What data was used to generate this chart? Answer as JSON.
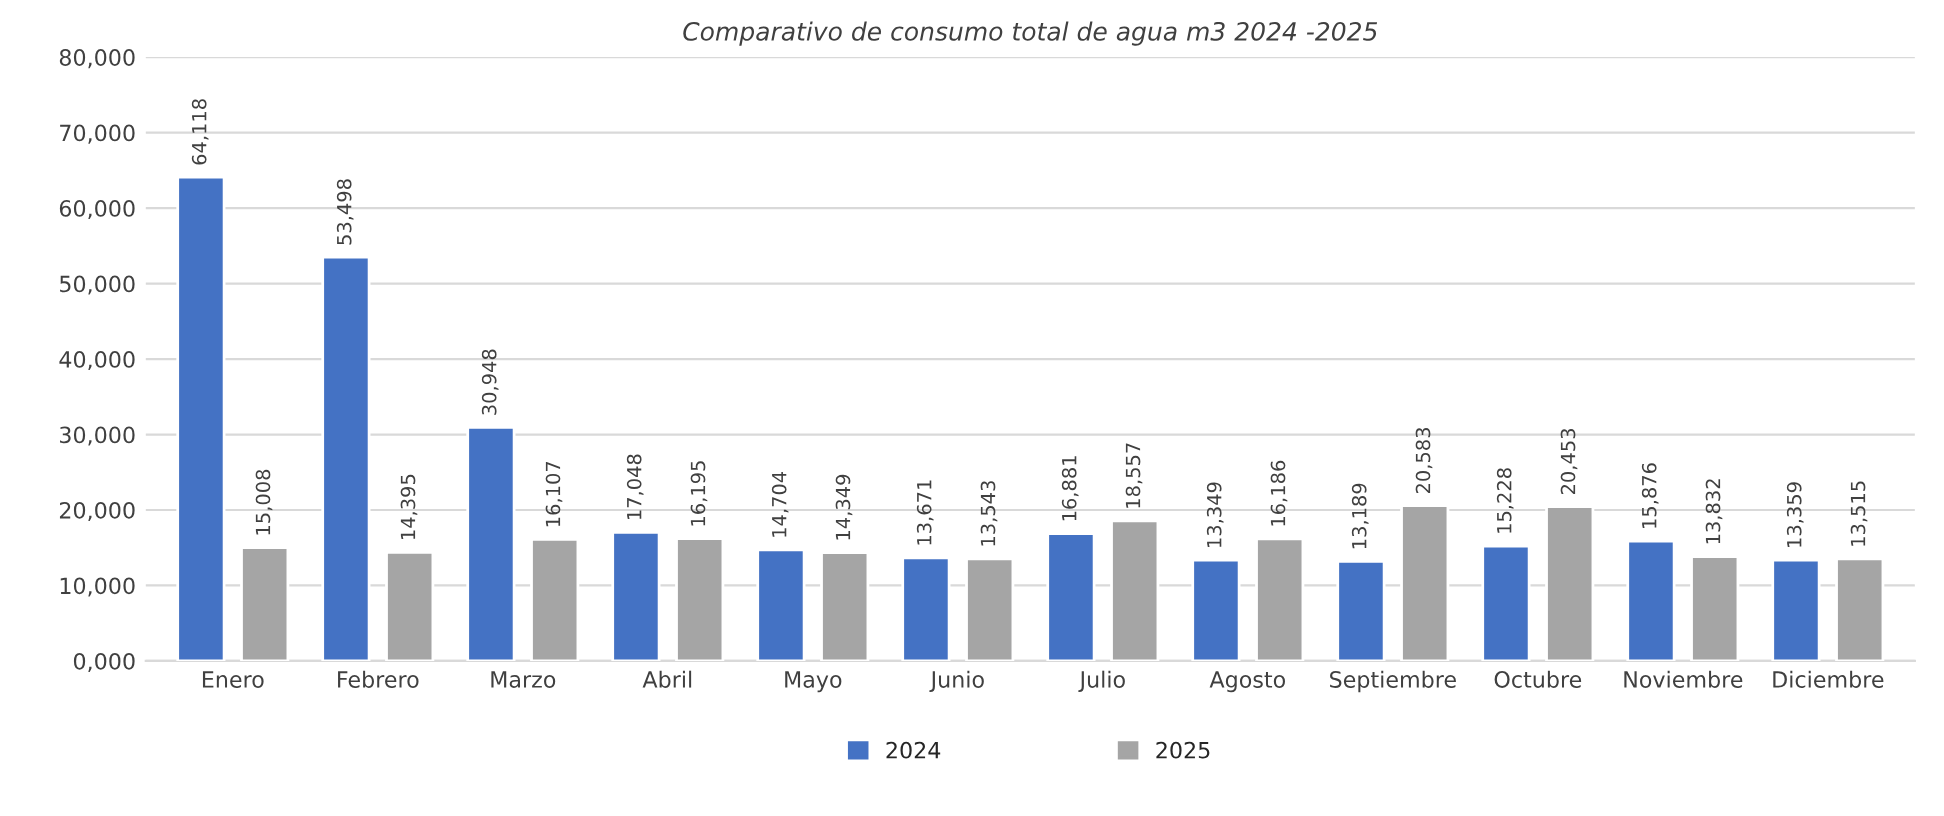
{
  "chart_data": {
    "type": "bar",
    "title": "Comparativo de consumo total de agua m3 2024 -2025",
    "categories": [
      "Enero",
      "Febrero",
      "Marzo",
      "Abril",
      "Mayo",
      "Junio",
      "Julio",
      "Agosto",
      "Septiembre",
      "Octubre",
      "Noviembre",
      "Diciembre"
    ],
    "series": [
      {
        "name": "2024",
        "color": "#4472c4",
        "values": [
          64118,
          53498,
          30948,
          17048,
          14704,
          13671,
          16881,
          13349,
          13189,
          15228,
          15876,
          13359
        ],
        "value_labels": [
          "64,118",
          "53,498",
          "30,948",
          "17,048",
          "14,704",
          "13,671",
          "16,881",
          "13,349",
          "13,189",
          "15,228",
          "15,876",
          "13,359"
        ]
      },
      {
        "name": "2025",
        "color": "#a5a5a5",
        "values": [
          15008,
          14395,
          16107,
          16195,
          14349,
          13543,
          18557,
          16186,
          20583,
          20453,
          13832,
          13515
        ],
        "value_labels": [
          "15,008",
          "14,395",
          "16,107",
          "16,195",
          "14,349",
          "13,543",
          "18,557",
          "16,186",
          "20,583",
          "20,453",
          "13,832",
          "13,515"
        ]
      }
    ],
    "ylim": [
      0,
      80000
    ],
    "yticks": [
      {
        "value": 0,
        "label": "0,000"
      },
      {
        "value": 10000,
        "label": "10,000"
      },
      {
        "value": 20000,
        "label": "20,000"
      },
      {
        "value": 30000,
        "label": "30,000"
      },
      {
        "value": 40000,
        "label": "40,000"
      },
      {
        "value": 50000,
        "label": "50,000"
      },
      {
        "value": 60000,
        "label": "60,000"
      },
      {
        "value": 70000,
        "label": "70,000"
      },
      {
        "value": 80000,
        "label": "80,000"
      }
    ],
    "grid": "y",
    "legend": "bottom"
  }
}
